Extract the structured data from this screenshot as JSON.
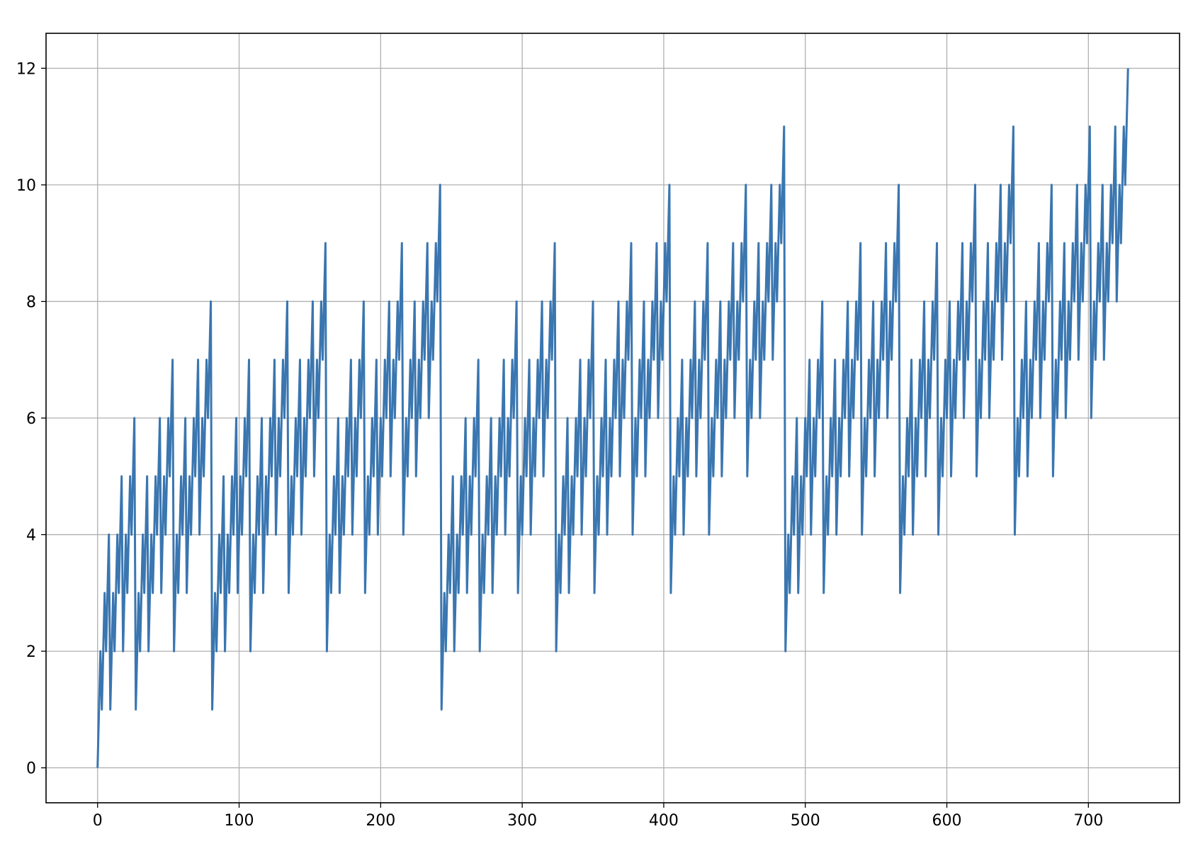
{
  "chart_data": {
    "type": "line",
    "series": [
      {
        "color": "#3a76b0",
        "values": [
          0,
          1,
          2,
          1,
          2,
          3,
          2,
          3,
          4,
          1,
          2,
          3,
          2,
          3,
          4,
          3,
          4,
          5,
          2,
          3,
          4,
          3,
          4,
          5,
          4,
          5,
          6,
          1,
          2,
          3,
          2,
          3,
          4,
          3,
          4,
          5,
          2,
          3,
          4,
          3,
          4,
          5,
          4,
          5,
          6,
          3,
          4,
          5,
          4,
          5,
          6,
          5,
          6,
          7,
          2,
          3,
          4,
          3,
          4,
          5,
          4,
          5,
          6,
          3,
          4,
          5,
          4,
          5,
          6,
          5,
          6,
          7,
          4,
          5,
          6,
          5,
          6,
          7,
          6,
          7,
          8,
          1,
          2,
          3,
          2,
          3,
          4,
          3,
          4,
          5,
          2,
          3,
          4,
          3,
          4,
          5,
          4,
          5,
          6,
          3,
          4,
          5,
          4,
          5,
          6,
          5,
          6,
          7,
          2,
          3,
          4,
          3,
          4,
          5,
          4,
          5,
          6,
          3,
          4,
          5,
          4,
          5,
          6,
          5,
          6,
          7,
          4,
          5,
          6,
          5,
          6,
          7,
          6,
          7,
          8,
          3,
          4,
          5,
          4,
          5,
          6,
          5,
          6,
          7,
          4,
          5,
          6,
          5,
          6,
          7,
          6,
          7,
          8,
          5,
          6,
          7,
          6,
          7,
          8,
          7,
          8,
          9,
          2,
          3,
          4,
          3,
          4,
          5,
          4,
          5,
          6,
          3,
          4,
          5,
          4,
          5,
          6,
          5,
          6,
          7,
          4,
          5,
          6,
          5,
          6,
          7,
          6,
          7,
          8,
          3,
          4,
          5,
          4,
          5,
          6,
          5,
          6,
          7,
          4,
          5,
          6,
          5,
          6,
          7,
          6,
          7,
          8,
          5,
          6,
          7,
          6,
          7,
          8,
          7,
          8,
          9,
          4,
          5,
          6,
          5,
          6,
          7,
          6,
          7,
          8,
          5,
          6,
          7,
          6,
          7,
          8,
          7,
          8,
          9,
          6,
          7,
          8,
          7,
          8,
          9,
          8,
          9,
          10,
          1,
          2,
          3,
          2,
          3,
          4,
          3,
          4,
          5,
          2,
          3,
          4,
          3,
          4,
          5,
          4,
          5,
          6,
          3,
          4,
          5,
          4,
          5,
          6,
          5,
          6,
          7,
          2,
          3,
          4,
          3,
          4,
          5,
          4,
          5,
          6,
          3,
          4,
          5,
          4,
          5,
          6,
          5,
          6,
          7,
          4,
          5,
          6,
          5,
          6,
          7,
          6,
          7,
          8,
          3,
          4,
          5,
          4,
          5,
          6,
          5,
          6,
          7,
          4,
          5,
          6,
          5,
          6,
          7,
          6,
          7,
          8,
          5,
          6,
          7,
          6,
          7,
          8,
          7,
          8,
          9,
          2,
          3,
          4,
          3,
          4,
          5,
          4,
          5,
          6,
          3,
          4,
          5,
          4,
          5,
          6,
          5,
          6,
          7,
          4,
          5,
          6,
          5,
          6,
          7,
          6,
          7,
          8,
          3,
          4,
          5,
          4,
          5,
          6,
          5,
          6,
          7,
          4,
          5,
          6,
          5,
          6,
          7,
          6,
          7,
          8,
          5,
          6,
          7,
          6,
          7,
          8,
          7,
          8,
          9,
          4,
          5,
          6,
          5,
          6,
          7,
          6,
          7,
          8,
          5,
          6,
          7,
          6,
          7,
          8,
          7,
          8,
          9,
          6,
          7,
          8,
          7,
          8,
          9,
          8,
          9,
          10,
          3,
          4,
          5,
          4,
          5,
          6,
          5,
          6,
          7,
          4,
          5,
          6,
          5,
          6,
          7,
          6,
          7,
          8,
          5,
          6,
          7,
          6,
          7,
          8,
          7,
          8,
          9,
          4,
          5,
          6,
          5,
          6,
          7,
          6,
          7,
          8,
          5,
          6,
          7,
          6,
          7,
          8,
          7,
          8,
          9,
          6,
          7,
          8,
          7,
          8,
          9,
          8,
          9,
          10,
          5,
          6,
          7,
          6,
          7,
          8,
          7,
          8,
          9,
          6,
          7,
          8,
          7,
          8,
          9,
          8,
          9,
          10,
          7,
          8,
          9,
          8,
          9,
          10,
          9,
          10,
          11,
          2,
          3,
          4,
          3,
          4,
          5,
          4,
          5,
          6,
          3,
          4,
          5,
          4,
          5,
          6,
          5,
          6,
          7,
          4,
          5,
          6,
          5,
          6,
          7,
          6,
          7,
          8,
          3,
          4,
          5,
          4,
          5,
          6,
          5,
          6,
          7,
          4,
          5,
          6,
          5,
          6,
          7,
          6,
          7,
          8,
          5,
          6,
          7,
          6,
          7,
          8,
          7,
          8,
          9,
          4,
          5,
          6,
          5,
          6,
          7,
          6,
          7,
          8,
          5,
          6,
          7,
          6,
          7,
          8,
          7,
          8,
          9,
          6,
          7,
          8,
          7,
          8,
          9,
          8,
          9,
          10,
          3,
          4,
          5,
          4,
          5,
          6,
          5,
          6,
          7,
          4,
          5,
          6,
          5,
          6,
          7,
          6,
          7,
          8,
          5,
          6,
          7,
          6,
          7,
          8,
          7,
          8,
          9,
          4,
          5,
          6,
          5,
          6,
          7,
          6,
          7,
          8,
          5,
          6,
          7,
          6,
          7,
          8,
          7,
          8,
          9,
          6,
          7,
          8,
          7,
          8,
          9,
          8,
          9,
          10,
          5,
          6,
          7,
          6,
          7,
          8,
          7,
          8,
          9,
          6,
          7,
          8,
          7,
          8,
          9,
          8,
          9,
          10,
          7,
          8,
          9,
          8,
          9,
          10,
          9,
          10,
          11,
          4,
          5,
          6,
          5,
          6,
          7,
          6,
          7,
          8,
          5,
          6,
          7,
          6,
          7,
          8,
          7,
          8,
          9,
          6,
          7,
          8,
          7,
          8,
          9,
          8,
          9,
          10,
          5,
          6,
          7,
          6,
          7,
          8,
          7,
          8,
          9,
          6,
          7,
          8,
          7,
          8,
          9,
          8,
          9,
          10,
          7,
          8,
          9,
          8,
          9,
          10,
          9,
          10,
          11,
          6,
          7,
          8,
          7,
          8,
          9,
          8,
          9,
          10,
          7,
          8,
          9,
          8,
          9,
          10,
          9,
          10,
          11,
          8,
          9,
          10,
          9,
          10,
          11,
          10,
          11,
          12
        ]
      }
    ],
    "xlim": [
      -36.4,
      764.4
    ],
    "xticks": [
      0,
      100,
      200,
      300,
      400,
      500,
      600,
      700
    ],
    "ylim": [
      -0.6,
      12.6
    ],
    "yticks": [
      0,
      2,
      4,
      6,
      8,
      10,
      12
    ],
    "grid": true
  }
}
